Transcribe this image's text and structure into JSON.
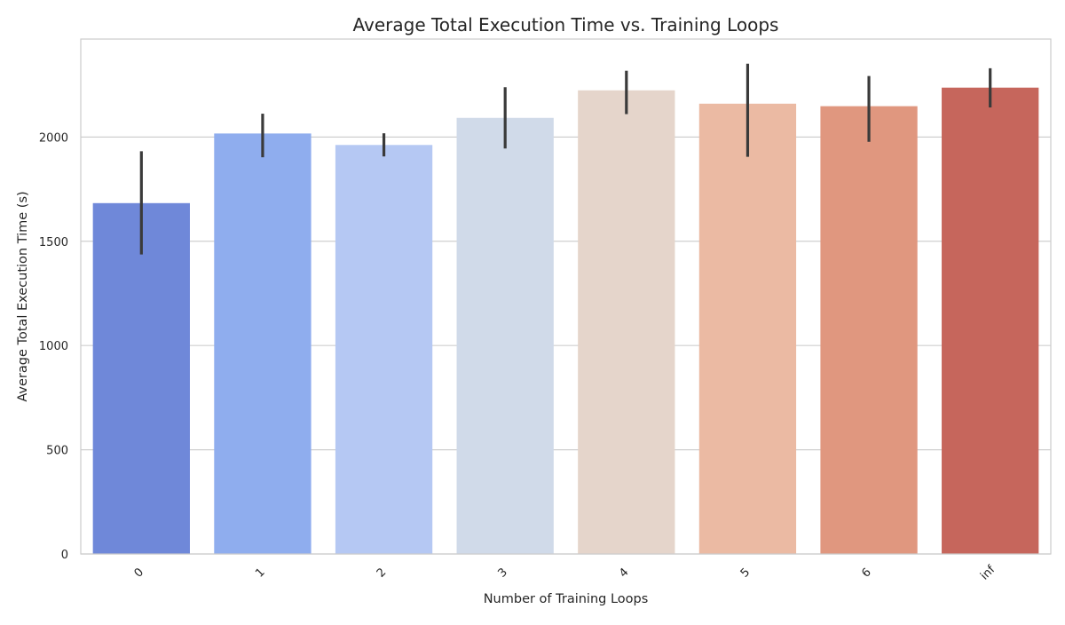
{
  "chart_data": {
    "type": "bar",
    "title": "Average Total Execution Time vs. Training Loops",
    "xlabel": "Number of Training Loops",
    "ylabel": "Average Total Execution Time (s)",
    "categories": [
      "0",
      "1",
      "2",
      "3",
      "4",
      "5",
      "6",
      "inf"
    ],
    "values": [
      1683,
      2017,
      1962,
      2092,
      2224,
      2160,
      2148,
      2237
    ],
    "error_low": [
      1437,
      1903,
      1907,
      1945,
      2110,
      1905,
      1977,
      2142
    ],
    "error_high": [
      1932,
      2112,
      2018,
      2239,
      2318,
      2352,
      2293,
      2330
    ],
    "ylim": [
      0,
      2470
    ],
    "yticks": [
      0,
      500,
      1000,
      1500,
      2000
    ],
    "grid": "horizontal",
    "colors": [
      "#6f88d9",
      "#8fadee",
      "#b5c8f3",
      "#d0dae9",
      "#e5d5cb",
      "#ebbaa3",
      "#e0977f",
      "#c6665c"
    ],
    "errorbar_color": "#3a3a3a",
    "grid_color": "#cfcfcf"
  }
}
